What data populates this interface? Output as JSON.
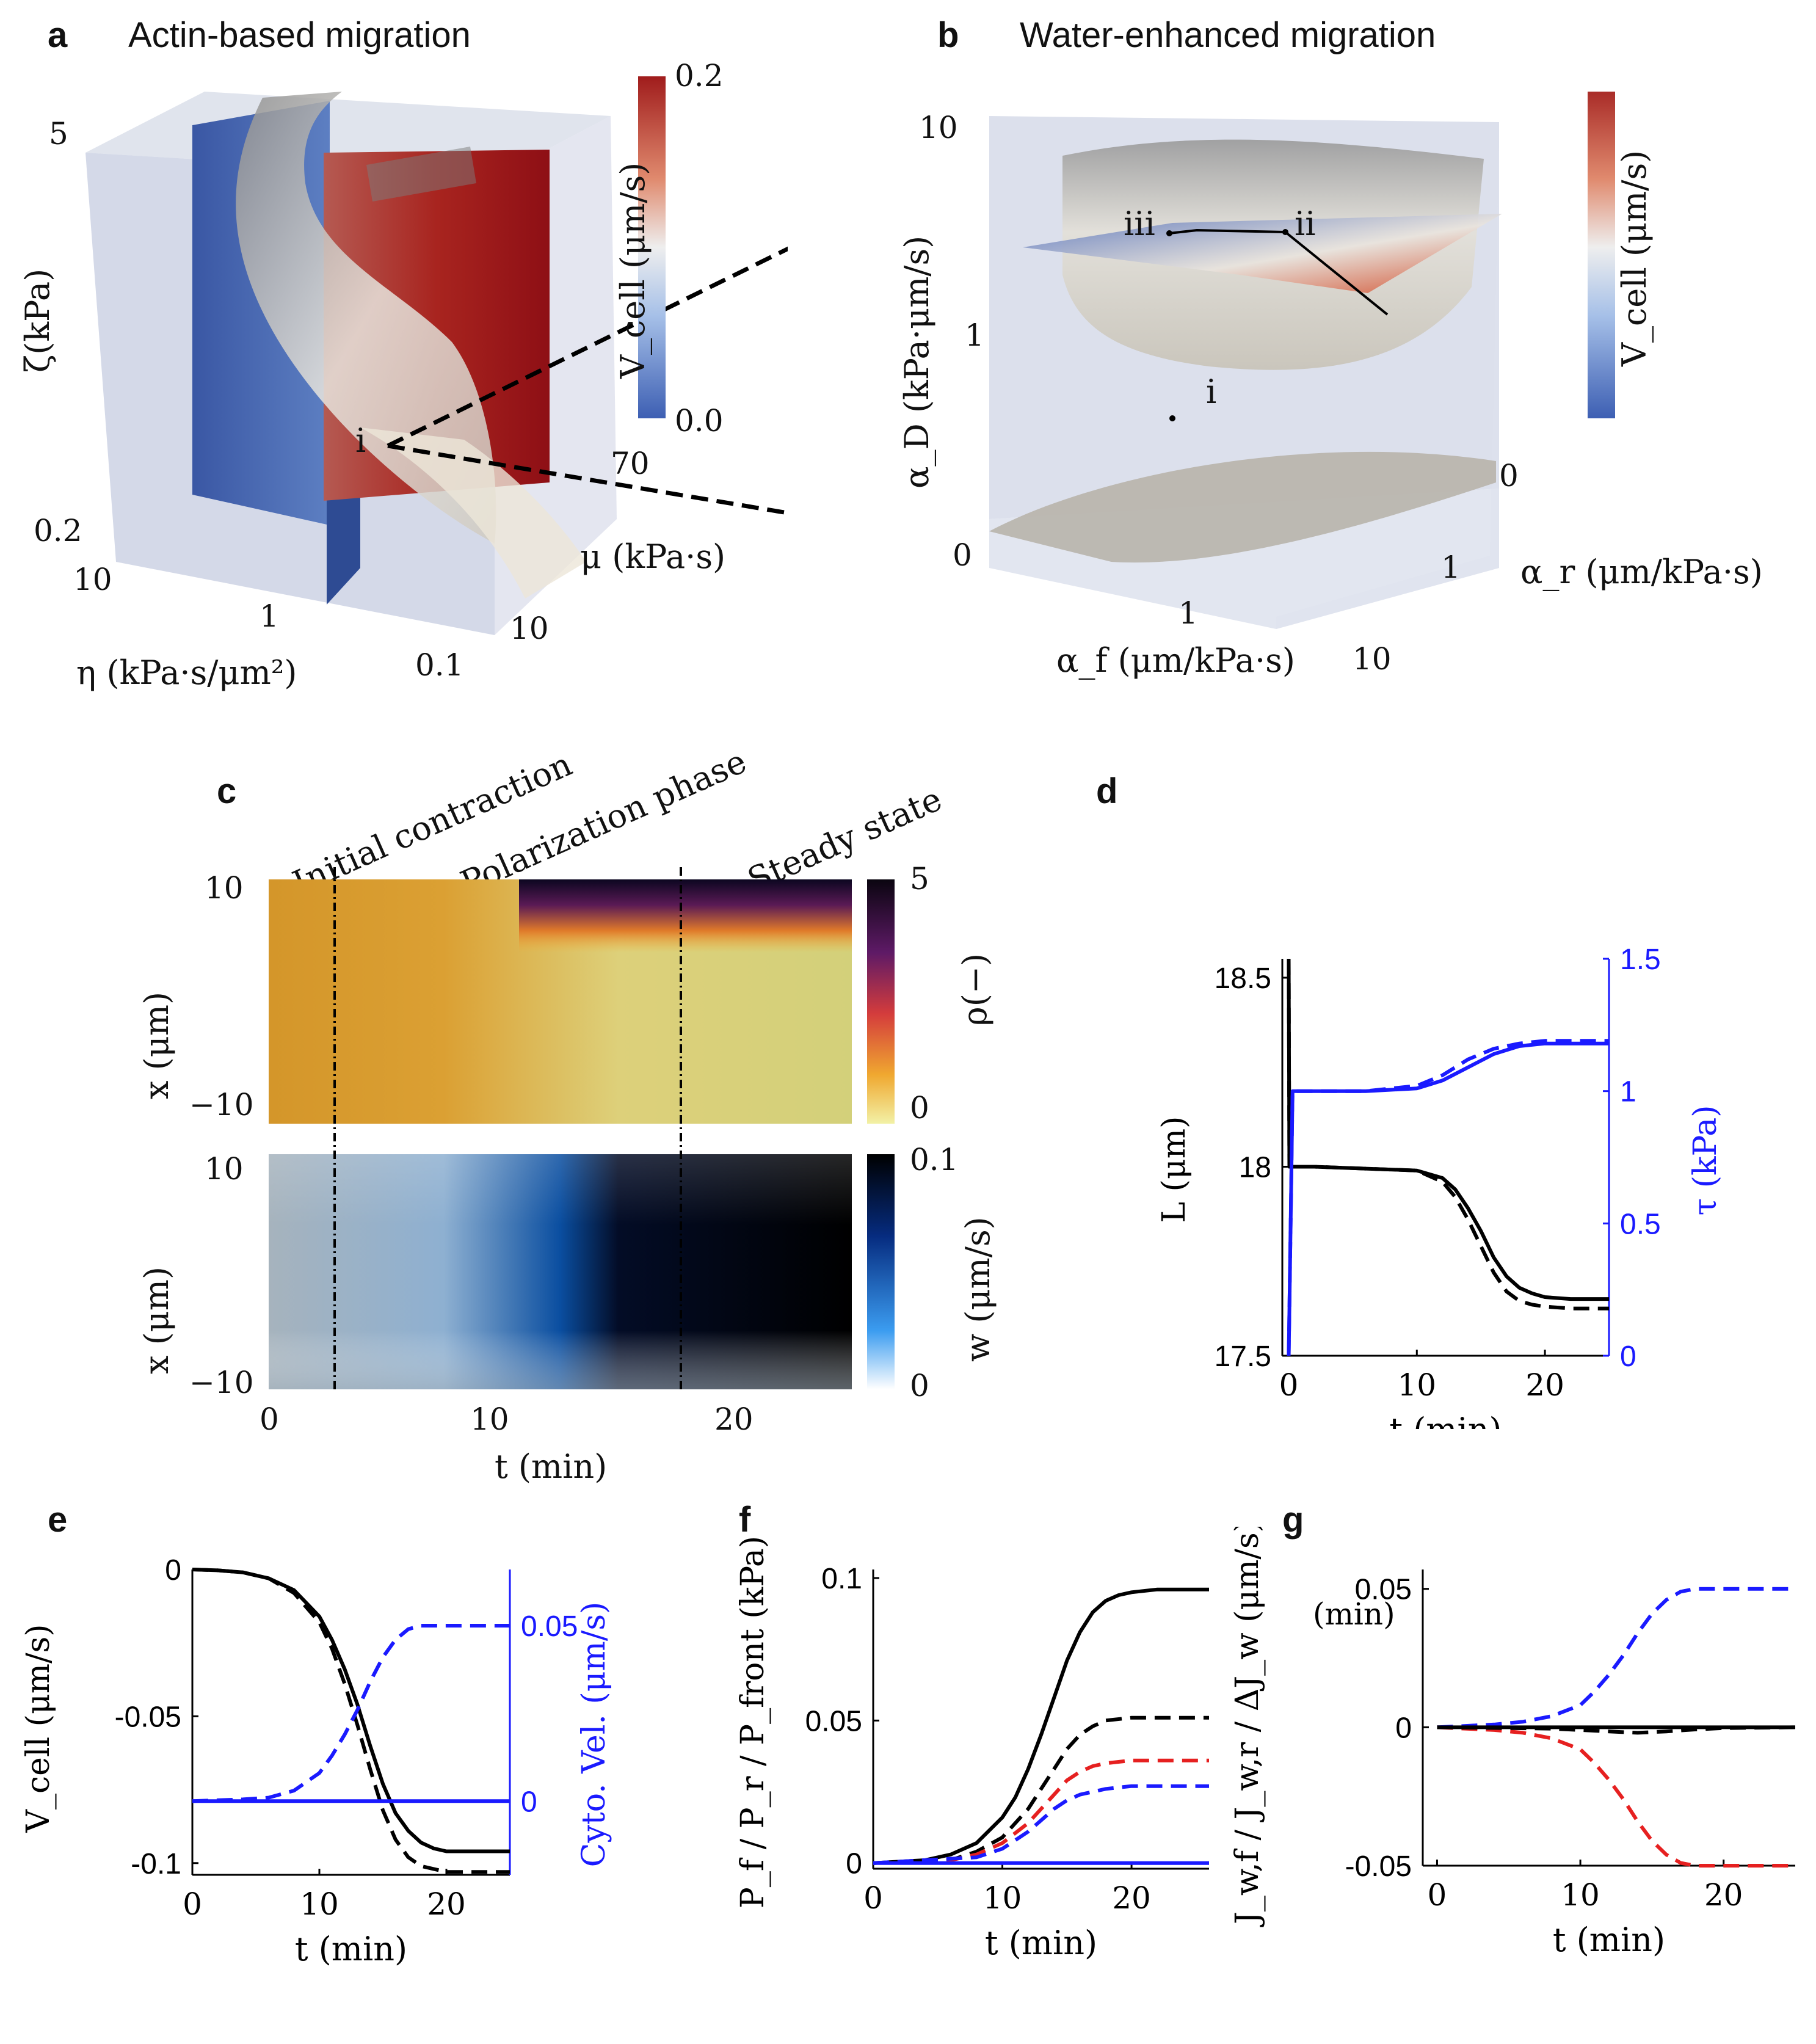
{
  "panel_a": {
    "letter": "a",
    "title": "Actin-based migration",
    "axis_zeta": "ζ(kPa)",
    "axis_eta": "η (kPa·s/μm²)",
    "axis_mu": "μ (kPa·s)",
    "zeta_top": "5",
    "zeta_bottom": "0.2",
    "eta_10": "10",
    "eta_1": "1",
    "eta_01": "0.1",
    "mu_70": "70",
    "mu_10": "10",
    "point": "i",
    "cbar_max": "0.2",
    "cbar_min": "0.0",
    "cbar_label": "V_cell (μm/s)"
  },
  "panel_b": {
    "letter": "b",
    "title": "Water-enhanced migration",
    "axis_alphaD": "α_D (kPa·μm/s)",
    "axis_alphaF": "α_f (μm/kPa·s)",
    "axis_alphaR": "α_r (μm/kPa·s)",
    "d10": "10",
    "d1": "1",
    "d0": "0",
    "f1": "1",
    "f10": "10",
    "r0": "0",
    "r1": "1",
    "point_i": "i",
    "point_ii": "ii",
    "point_iii": "iii",
    "cbar_label": "V_cell (μm/s)"
  },
  "panel_c": {
    "letter": "c",
    "phase1": "Initial contraction",
    "phase2": "Polarization phase",
    "phase3": "Steady state",
    "ylabel": "x (μm)",
    "y_top": "10",
    "y_bottom": "−10",
    "rho_label": "ρ(−)",
    "rho_max": "5",
    "rho_min": "0",
    "w_label": "w (μm/s)",
    "w_max": "0.1",
    "w_min": "0",
    "xlabel": "t (min)",
    "x_ticks": [
      "0",
      "10",
      "20"
    ]
  },
  "chart_data": [
    {
      "panel": "d",
      "type": "line",
      "xlabel": "t (min)",
      "ylabel": "L (μm)",
      "y2label": "τ (kPa)",
      "xlim": [
        -0.5,
        25
      ],
      "ylim": [
        17.5,
        18.55
      ],
      "y2lim": [
        0,
        1.5
      ],
      "x_ticks": [
        "0",
        "10",
        "20"
      ],
      "y_ticks": [
        "17.5",
        "18",
        "18.5"
      ],
      "y2_ticks": [
        "0",
        "0.5",
        "1",
        "1.5"
      ],
      "series": [
        {
          "name": "L solid",
          "axis": "left",
          "color": "#000000",
          "style": "solid",
          "x": [
            0,
            0.05,
            0.3,
            2,
            6,
            10,
            12,
            13,
            14,
            15,
            16,
            17,
            18,
            19,
            20,
            22,
            25
          ],
          "y": [
            18.55,
            18.0,
            18.0,
            18.0,
            17.995,
            17.99,
            17.97,
            17.94,
            17.89,
            17.83,
            17.76,
            17.71,
            17.68,
            17.665,
            17.655,
            17.65,
            17.65
          ]
        },
        {
          "name": "L dashed",
          "axis": "left",
          "color": "#000000",
          "style": "dashed",
          "x": [
            0,
            0.05,
            0.3,
            2,
            6,
            10,
            12,
            13,
            14,
            15,
            16,
            17,
            18,
            19,
            20,
            22,
            25
          ],
          "y": [
            18.55,
            18.0,
            18.0,
            18.0,
            17.995,
            17.99,
            17.96,
            17.92,
            17.86,
            17.79,
            17.72,
            17.67,
            17.645,
            17.635,
            17.63,
            17.625,
            17.625
          ]
        },
        {
          "name": "τ solid",
          "axis": "right",
          "color": "#1a1aff",
          "style": "solid",
          "x": [
            0,
            0.3,
            2,
            6,
            10,
            12,
            14,
            16,
            18,
            20,
            22,
            25
          ],
          "y": [
            0,
            1.0,
            1.0,
            1.0,
            1.01,
            1.04,
            1.09,
            1.14,
            1.17,
            1.18,
            1.18,
            1.18
          ]
        },
        {
          "name": "τ dashed",
          "axis": "right",
          "color": "#1a1aff",
          "style": "dashed",
          "x": [
            0,
            0.3,
            2,
            6,
            10,
            12,
            14,
            16,
            18,
            20,
            22,
            25
          ],
          "y": [
            0,
            1.0,
            1.0,
            1.0,
            1.02,
            1.06,
            1.12,
            1.16,
            1.18,
            1.19,
            1.19,
            1.19
          ]
        }
      ]
    },
    {
      "panel": "e",
      "type": "line",
      "xlabel": "t (min)",
      "ylabel": "V_cell (μm/s)",
      "y2label": "Cyto. Vel. (μm/s)",
      "xlim": [
        0,
        25
      ],
      "ylim": [
        -0.104,
        0.0
      ],
      "y2lim": [
        -0.021,
        0.066
      ],
      "x_ticks": [
        "0",
        "10",
        "20"
      ],
      "y_ticks": [
        "0",
        "-0.05",
        "-0.1"
      ],
      "y2_ticks": [
        "0",
        "0.05"
      ],
      "series": [
        {
          "name": "V_cell solid",
          "axis": "left",
          "color": "#000000",
          "style": "solid",
          "x": [
            0,
            2,
            4,
            6,
            8,
            10,
            11,
            12,
            13,
            14,
            15,
            16,
            17,
            18,
            19,
            20,
            22,
            25
          ],
          "y": [
            0,
            -0.0003,
            -0.001,
            -0.003,
            -0.007,
            -0.016,
            -0.024,
            -0.034,
            -0.046,
            -0.06,
            -0.073,
            -0.083,
            -0.089,
            -0.093,
            -0.095,
            -0.096,
            -0.096,
            -0.096
          ]
        },
        {
          "name": "V_cell dashed",
          "axis": "left",
          "color": "#000000",
          "style": "dashed",
          "x": [
            0,
            2,
            4,
            6,
            8,
            10,
            11,
            12,
            13,
            14,
            15,
            16,
            17,
            18,
            19,
            20,
            22,
            25
          ],
          "y": [
            0,
            -0.0003,
            -0.001,
            -0.003,
            -0.008,
            -0.018,
            -0.027,
            -0.039,
            -0.053,
            -0.068,
            -0.082,
            -0.092,
            -0.098,
            -0.101,
            -0.102,
            -0.103,
            -0.103,
            -0.103
          ]
        },
        {
          "name": "cyto solid",
          "axis": "right",
          "color": "#1a1aff",
          "style": "solid",
          "x": [
            0,
            25
          ],
          "y": [
            0,
            0
          ]
        },
        {
          "name": "cyto dashed",
          "axis": "right",
          "color": "#1a1aff",
          "style": "dashed",
          "x": [
            0,
            4,
            6,
            8,
            10,
            11,
            12,
            13,
            14,
            15,
            16,
            17,
            18,
            20,
            22,
            25
          ],
          "y": [
            0,
            0.0005,
            0.001,
            0.003,
            0.008,
            0.013,
            0.019,
            0.026,
            0.034,
            0.041,
            0.046,
            0.049,
            0.05,
            0.05,
            0.05,
            0.05
          ]
        }
      ]
    },
    {
      "panel": "f",
      "type": "line",
      "xlabel": "t (min)",
      "ylabel": "P_f / P_r / P_front (kPa)",
      "xlim": [
        0,
        26
      ],
      "ylim": [
        -0.002,
        0.103
      ],
      "x_ticks": [
        "0",
        "10",
        "20"
      ],
      "y_ticks": [
        "0",
        "0.05",
        "0.1"
      ],
      "series": [
        {
          "name": "P_front solid",
          "color": "#000000",
          "style": "solid",
          "x": [
            0,
            4,
            6,
            8,
            10,
            11,
            12,
            13,
            14,
            15,
            16,
            17,
            18,
            19,
            20,
            22,
            26
          ],
          "y": [
            0,
            0.001,
            0.003,
            0.007,
            0.016,
            0.023,
            0.033,
            0.045,
            0.058,
            0.071,
            0.081,
            0.088,
            0.092,
            0.094,
            0.095,
            0.096,
            0.096
          ]
        },
        {
          "name": "black dashed",
          "color": "#000000",
          "style": "dashed",
          "x": [
            0,
            6,
            8,
            10,
            12,
            13,
            14,
            15,
            16,
            17,
            18,
            20,
            22,
            26
          ],
          "y": [
            0,
            0.001,
            0.004,
            0.009,
            0.019,
            0.026,
            0.033,
            0.04,
            0.045,
            0.048,
            0.05,
            0.051,
            0.051,
            0.051
          ]
        },
        {
          "name": "P_f dashed",
          "color": "#e62020",
          "style": "dashed",
          "x": [
            0,
            6,
            8,
            10,
            12,
            13,
            14,
            15,
            16,
            17,
            18,
            20,
            22,
            26
          ],
          "y": [
            0,
            0.001,
            0.003,
            0.007,
            0.014,
            0.019,
            0.024,
            0.029,
            0.032,
            0.034,
            0.035,
            0.036,
            0.036,
            0.036
          ]
        },
        {
          "name": "P_r dashed",
          "color": "#1a1aff",
          "style": "dashed",
          "x": [
            0,
            8,
            10,
            12,
            13,
            14,
            15,
            16,
            17,
            18,
            20,
            22,
            26
          ],
          "y": [
            0,
            0.002,
            0.005,
            0.011,
            0.015,
            0.019,
            0.022,
            0.024,
            0.025,
            0.026,
            0.027,
            0.027,
            0.027
          ]
        },
        {
          "name": "P_r solid",
          "color": "#1a1aff",
          "style": "solid",
          "x": [
            0,
            26
          ],
          "y": [
            0,
            0
          ]
        }
      ]
    },
    {
      "panel": "g",
      "type": "line",
      "annotation": "(min)",
      "xlabel": "t (min)",
      "ylabel": "J_w,f / J_w,r / ΔJ_w (μm/s)",
      "xlim": [
        -1,
        25
      ],
      "ylim": [
        -0.05,
        0.057
      ],
      "x_ticks": [
        "0",
        "10",
        "20"
      ],
      "y_ticks": [
        "0.05",
        "0",
        "-0.05"
      ],
      "series": [
        {
          "name": "J_w,r dashed",
          "color": "#1a1aff",
          "style": "dashed",
          "x": [
            0,
            4,
            6,
            8,
            10,
            11,
            12,
            13,
            14,
            15,
            16,
            17,
            18,
            19,
            20,
            22,
            25
          ],
          "y": [
            0,
            0.001,
            0.002,
            0.004,
            0.008,
            0.013,
            0.019,
            0.026,
            0.034,
            0.041,
            0.046,
            0.049,
            0.05,
            0.05,
            0.05,
            0.05,
            0.05
          ]
        },
        {
          "name": "J_w,f dashed",
          "color": "#e62020",
          "style": "dashed",
          "x": [
            0,
            4,
            6,
            8,
            10,
            11,
            12,
            13,
            14,
            15,
            16,
            17,
            18,
            19,
            20,
            22,
            25
          ],
          "y": [
            0,
            -0.001,
            -0.002,
            -0.004,
            -0.008,
            -0.013,
            -0.019,
            -0.026,
            -0.034,
            -0.041,
            -0.046,
            -0.049,
            -0.05,
            -0.05,
            -0.05,
            -0.05,
            -0.05
          ]
        },
        {
          "name": "ΔJ_w dashed",
          "color": "#000000",
          "style": "dashed",
          "x": [
            0,
            8,
            10,
            12,
            14,
            16,
            18,
            20,
            25
          ],
          "y": [
            0,
            -0.0005,
            -0.001,
            -0.0015,
            -0.002,
            -0.0015,
            -0.0008,
            -0.0003,
            0
          ]
        },
        {
          "name": "ΔJ_w solid",
          "color": "#000000",
          "style": "solid",
          "x": [
            0,
            25
          ],
          "y": [
            0,
            0
          ]
        }
      ]
    }
  ]
}
